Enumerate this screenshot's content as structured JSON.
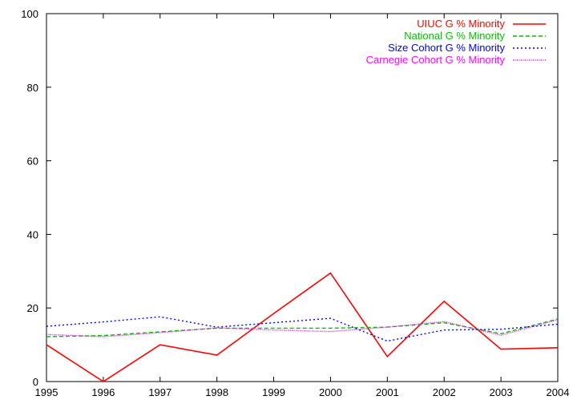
{
  "chart_data": {
    "type": "line",
    "title": "",
    "xlabel": "",
    "ylabel": "",
    "x": [
      1995,
      1996,
      1997,
      1998,
      1999,
      2000,
      2001,
      2002,
      2003,
      2004
    ],
    "x_ticks": [
      "1995",
      "1996",
      "1997",
      "1998",
      "1999",
      "2000",
      "2001",
      "2002",
      "2003",
      "2004"
    ],
    "y_ticks": [
      "0",
      "20",
      "40",
      "60",
      "80",
      "100"
    ],
    "xlim": [
      1995,
      2004
    ],
    "ylim": [
      0,
      100
    ],
    "grid": false,
    "legend_position": "top-right",
    "series": [
      {
        "name": "UIUC G % Minority",
        "color": "#ff0000",
        "dash": "solid",
        "values": [
          10,
          0,
          10,
          7.2,
          18.5,
          29.5,
          6.8,
          21.8,
          8.8,
          9.2
        ]
      },
      {
        "name": "National G % Minority",
        "color": "#00c000",
        "dash": "dashed",
        "values": [
          12.2,
          12.5,
          13.5,
          14.5,
          14.5,
          14.5,
          14.8,
          16.0,
          13.0,
          17.0
        ]
      },
      {
        "name": "Size Cohort G % Minority",
        "color": "#0000ff",
        "dash": "dotted",
        "values": [
          15.0,
          16.2,
          17.6,
          14.8,
          16.0,
          17.2,
          11.0,
          14.0,
          14.2,
          15.6
        ]
      },
      {
        "name": "Carnegie Cohort G % Minority",
        "color": "#ff00ff",
        "dash": "fine-dotted",
        "values": [
          12.8,
          12.2,
          13.3,
          14.6,
          14.0,
          13.6,
          14.8,
          16.3,
          12.6,
          16.8
        ]
      }
    ]
  }
}
